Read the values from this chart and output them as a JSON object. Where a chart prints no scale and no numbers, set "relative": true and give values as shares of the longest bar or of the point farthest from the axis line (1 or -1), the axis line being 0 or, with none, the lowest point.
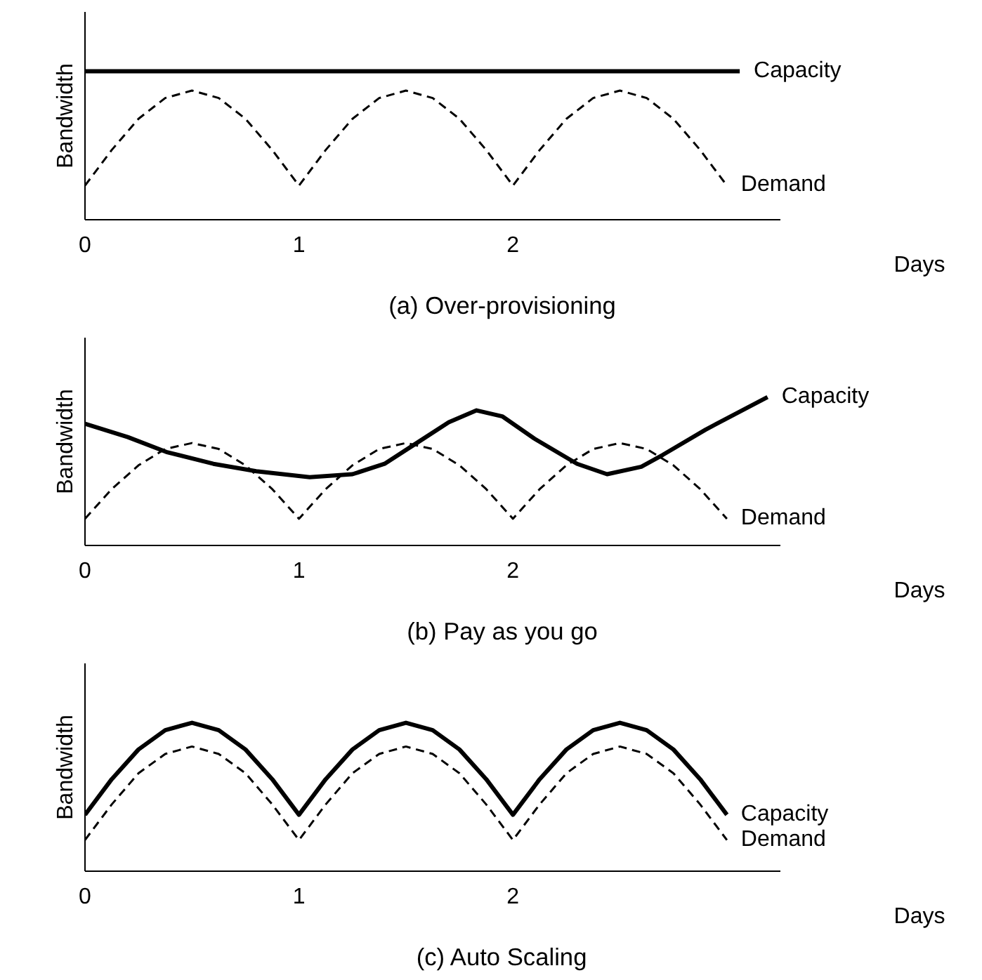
{
  "chart_data": [
    {
      "type": "line",
      "title": "(a) Over-provisioning",
      "xlabel": "Days",
      "ylabel": "Bandwidth",
      "relative": true,
      "xlim": [
        0,
        3.25
      ],
      "xticks": [
        0,
        1,
        2
      ],
      "grid": false,
      "legend": false,
      "series": [
        {
          "name": "Capacity",
          "color": "#000000",
          "line_style": "solid",
          "x": [
            0,
            3.06
          ],
          "values": [
            1,
            1
          ]
        },
        {
          "name": "Demand",
          "color": "#000000",
          "line_style": "dashed",
          "x": [
            0,
            0.125,
            0.25,
            0.375,
            0.5,
            0.625,
            0.75,
            0.875,
            1,
            1.125,
            1.25,
            1.375,
            1.5,
            1.625,
            1.75,
            1.875,
            2,
            2.125,
            2.25,
            2.375,
            2.5,
            2.625,
            2.75,
            2.875,
            3
          ],
          "values": [
            0.23,
            0.47,
            0.68,
            0.82,
            0.87,
            0.82,
            0.68,
            0.47,
            0.23,
            0.47,
            0.68,
            0.82,
            0.87,
            0.82,
            0.68,
            0.47,
            0.23,
            0.47,
            0.68,
            0.82,
            0.87,
            0.82,
            0.68,
            0.47,
            0.23
          ]
        }
      ]
    },
    {
      "type": "line",
      "title": "(b) Pay as you go",
      "xlabel": "Days",
      "ylabel": "Bandwidth",
      "relative": true,
      "xlim": [
        0,
        3.25
      ],
      "xticks": [
        0,
        1,
        2
      ],
      "grid": false,
      "legend": false,
      "series": [
        {
          "name": "Capacity",
          "color": "#000000",
          "line_style": "solid",
          "x": [
            0,
            0.2,
            0.38,
            0.6,
            0.8,
            1.05,
            1.25,
            1.4,
            1.55,
            1.7,
            1.83,
            1.95,
            2.1,
            2.3,
            2.44,
            2.6,
            2.7,
            2.9,
            3.19
          ],
          "values": [
            0.82,
            0.73,
            0.63,
            0.55,
            0.5,
            0.46,
            0.48,
            0.55,
            0.69,
            0.83,
            0.91,
            0.87,
            0.72,
            0.55,
            0.48,
            0.53,
            0.61,
            0.78,
            1
          ]
        },
        {
          "name": "Demand",
          "color": "#000000",
          "line_style": "dashed",
          "x": [
            0,
            0.125,
            0.25,
            0.375,
            0.5,
            0.625,
            0.75,
            0.875,
            1,
            1.125,
            1.25,
            1.375,
            1.5,
            1.625,
            1.75,
            1.875,
            2,
            2.125,
            2.25,
            2.375,
            2.5,
            2.625,
            2.75,
            2.875,
            3
          ],
          "values": [
            0.18,
            0.38,
            0.54,
            0.65,
            0.69,
            0.65,
            0.54,
            0.38,
            0.18,
            0.38,
            0.54,
            0.65,
            0.69,
            0.65,
            0.54,
            0.38,
            0.18,
            0.38,
            0.54,
            0.65,
            0.69,
            0.65,
            0.54,
            0.38,
            0.18
          ]
        }
      ]
    },
    {
      "type": "line",
      "title": "(c) Auto Scaling",
      "xlabel": "Days",
      "ylabel": "Bandwidth",
      "relative": true,
      "xlim": [
        0,
        3.25
      ],
      "xticks": [
        0,
        1,
        2
      ],
      "grid": false,
      "legend": false,
      "series": [
        {
          "name": "Capacity",
          "color": "#000000",
          "line_style": "solid",
          "x": [
            0,
            0.125,
            0.25,
            0.375,
            0.5,
            0.625,
            0.75,
            0.875,
            1,
            1.125,
            1.25,
            1.375,
            1.5,
            1.625,
            1.75,
            1.875,
            2,
            2.125,
            2.25,
            2.375,
            2.5,
            2.625,
            2.75,
            2.875,
            3
          ],
          "values": [
            0.38,
            0.62,
            0.82,
            0.95,
            1,
            0.95,
            0.82,
            0.62,
            0.38,
            0.62,
            0.82,
            0.95,
            1,
            0.95,
            0.82,
            0.62,
            0.38,
            0.62,
            0.82,
            0.95,
            1,
            0.95,
            0.82,
            0.62,
            0.38
          ]
        },
        {
          "name": "Demand",
          "color": "#000000",
          "line_style": "dashed",
          "x": [
            0,
            0.125,
            0.25,
            0.375,
            0.5,
            0.625,
            0.75,
            0.875,
            1,
            1.125,
            1.25,
            1.375,
            1.5,
            1.625,
            1.75,
            1.875,
            2,
            2.125,
            2.25,
            2.375,
            2.5,
            2.625,
            2.75,
            2.875,
            3
          ],
          "values": [
            0.21,
            0.45,
            0.66,
            0.79,
            0.84,
            0.79,
            0.66,
            0.45,
            0.21,
            0.45,
            0.66,
            0.79,
            0.84,
            0.79,
            0.66,
            0.45,
            0.21,
            0.45,
            0.66,
            0.79,
            0.84,
            0.79,
            0.66,
            0.45,
            0.21
          ]
        }
      ]
    }
  ]
}
